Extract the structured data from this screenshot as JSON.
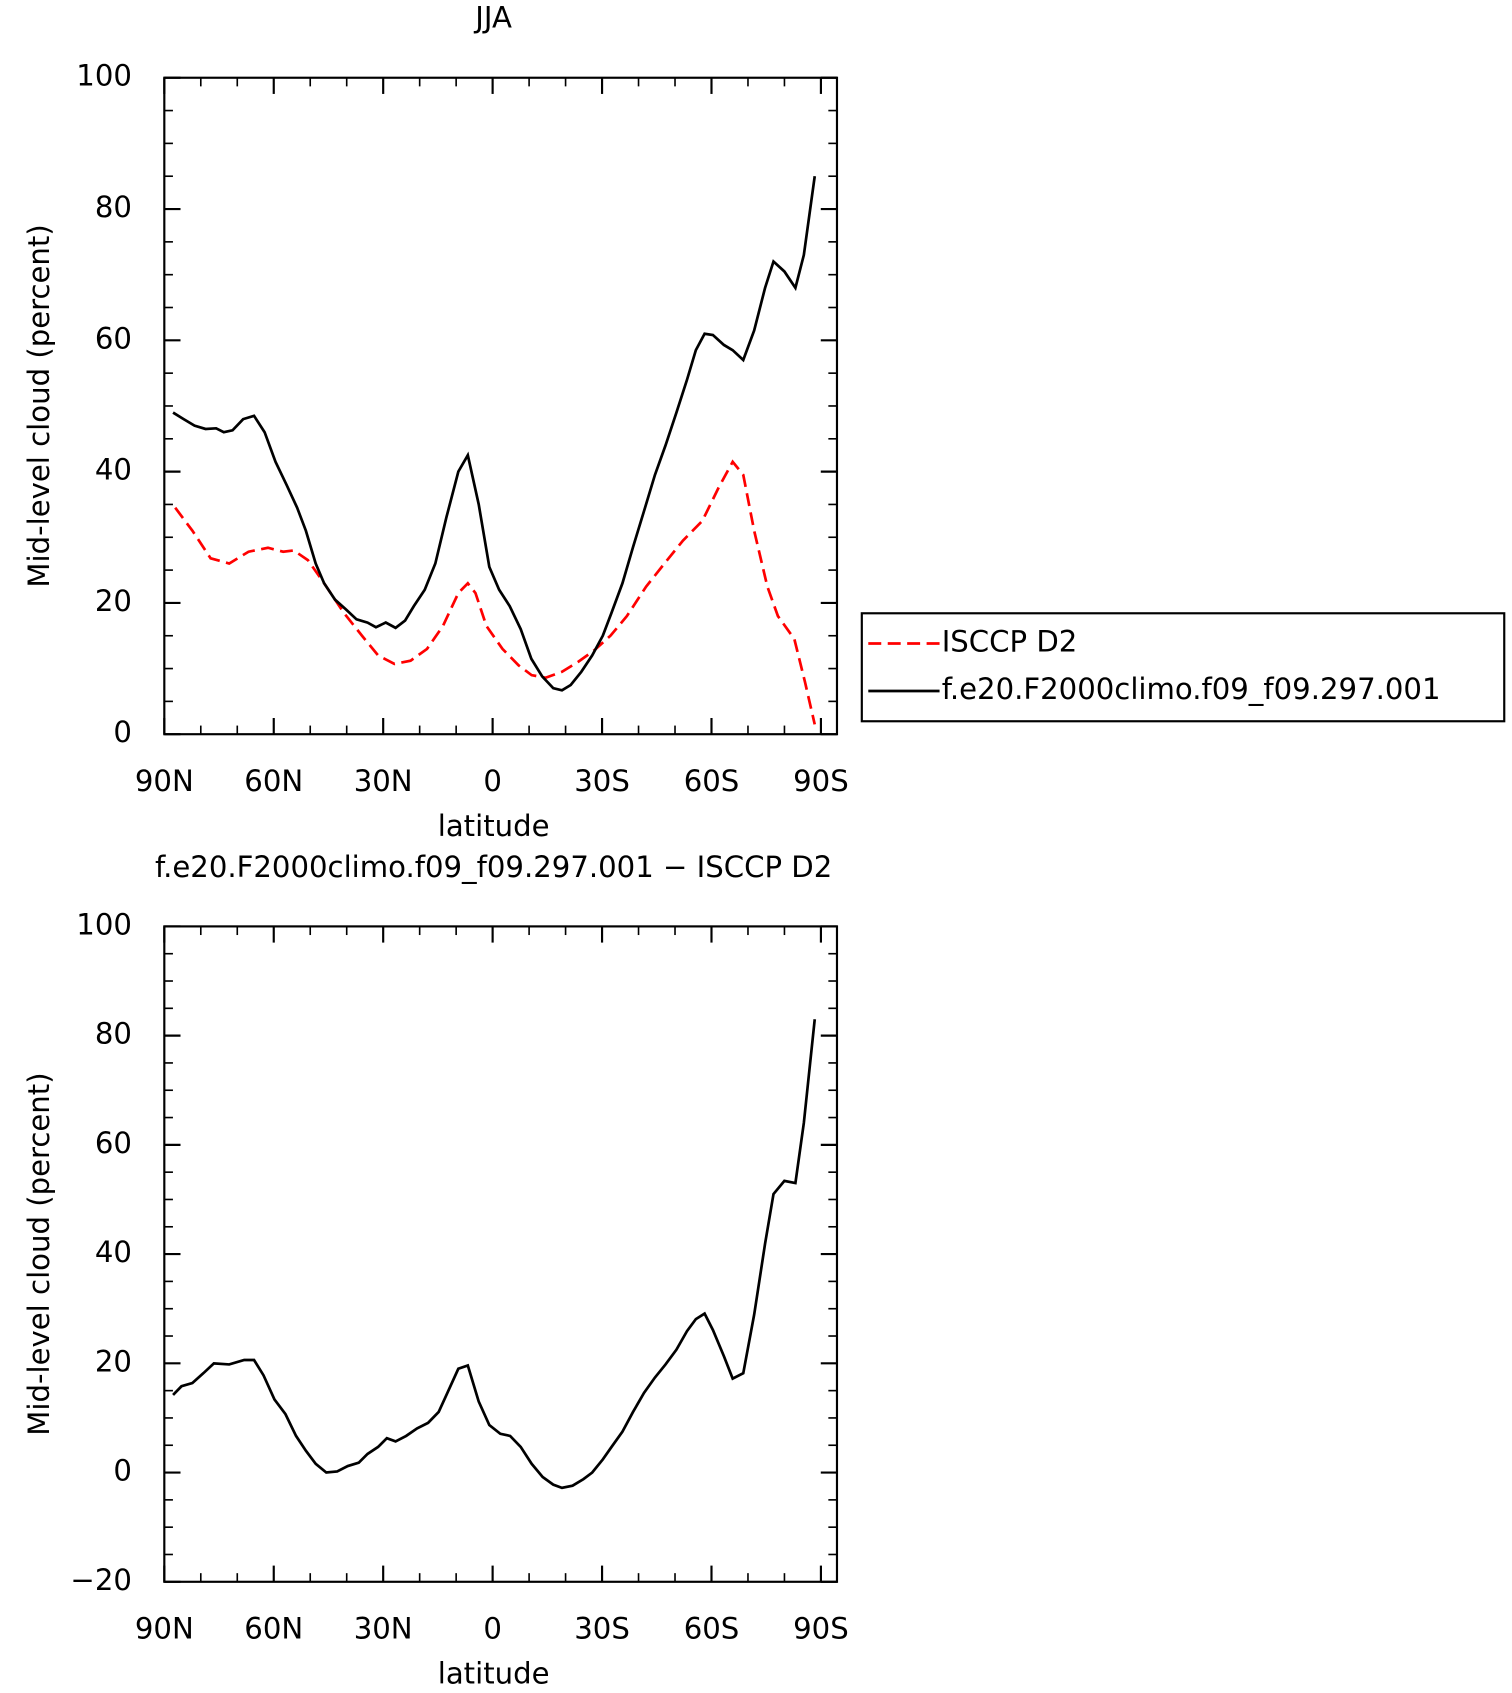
{
  "chart_data": [
    {
      "type": "line",
      "title": "JJA",
      "xlabel": "latitude",
      "ylabel": "Mid-level cloud (percent)",
      "xlim": [
        90,
        -94.4
      ],
      "xticks": [
        {
          "value": 90,
          "label": "90N"
        },
        {
          "value": 60,
          "label": "60N"
        },
        {
          "value": 30,
          "label": "30N"
        },
        0,
        {
          "value": -30,
          "label": "30S"
        },
        {
          "value": -60,
          "label": "60S"
        },
        {
          "value": -90,
          "label": "90S"
        }
      ],
      "ylim": [
        0,
        100
      ],
      "yticks": [
        0,
        20,
        40,
        60,
        80,
        100
      ],
      "series": [
        {
          "name": "ISCCP D2",
          "color": "#ff0000",
          "dash": true,
          "x": [
            87.0,
            82.3,
            77.3,
            72.2,
            66.9,
            61.6,
            57.4,
            54.5,
            50.6,
            46.2,
            40.8,
            35.8,
            31.4,
            26.9,
            22.5,
            18.0,
            13.6,
            9.4,
            6.8,
            4.7,
            1.7,
            -2.7,
            -7.1,
            -10.7,
            -14.5,
            -19.0,
            -23.4,
            -27.9,
            -32.3,
            -36.8,
            -42.1,
            -47.1,
            -52.2,
            -57.5,
            -61.9,
            -65.8,
            -68.7,
            -71.7,
            -75.3,
            -78.2,
            -82.7,
            -85.6,
            -88.3
          ],
          "values": [
            34.5,
            31,
            26.8,
            26,
            27.8,
            28.4,
            27.8,
            28,
            26.5,
            23,
            18.5,
            15,
            12,
            10.7,
            11.2,
            13,
            16.5,
            21.5,
            23,
            21.5,
            16.5,
            13,
            10.5,
            9,
            8.6,
            9.5,
            11,
            12.8,
            15,
            18,
            22.5,
            26,
            29.5,
            32.5,
            37.5,
            41.5,
            39.5,
            31,
            22.5,
            18,
            14.5,
            8,
            1.5
          ]
        },
        {
          "name": "f.e20.F2000climo.f09_f09.297.001",
          "color": "#000000",
          "dash": false,
          "x": [
            87.6,
            84.7,
            81.7,
            78.7,
            75.8,
            73.7,
            71.3,
            68.4,
            65.4,
            62.5,
            59.5,
            56.5,
            53.6,
            51.2,
            48.5,
            46.2,
            43.2,
            40.2,
            37.3,
            34.3,
            32.0,
            29.3,
            26.6,
            24.0,
            21.6,
            18.6,
            15.7,
            12.7,
            9.4,
            6.8,
            3.8,
            0.9,
            -1.8,
            -4.7,
            -7.7,
            -10.6,
            -13.6,
            -16.6,
            -19.0,
            -21.4,
            -24.3,
            -27.3,
            -30.2,
            -32.6,
            -35.6,
            -38.5,
            -41.5,
            -44.5,
            -47.4,
            -50.4,
            -53.3,
            -55.7,
            -58.1,
            -60.4,
            -63.4,
            -65.8,
            -68.7,
            -71.7,
            -74.7,
            -77.0,
            -80.0,
            -83.0,
            -85.3,
            -88.3
          ],
          "values": [
            49,
            48,
            47,
            46.5,
            46.6,
            46,
            46.3,
            48,
            48.5,
            46,
            41.5,
            38,
            34.5,
            31,
            26,
            23,
            20.5,
            19,
            17.5,
            17,
            16.3,
            17,
            16.2,
            17.3,
            19.5,
            22,
            26,
            33,
            40,
            42.5,
            35,
            25.5,
            22,
            19.5,
            16,
            11.5,
            8.8,
            7,
            6.7,
            7.5,
            9.5,
            12,
            15,
            18.5,
            23,
            28.5,
            34,
            39.5,
            44,
            49,
            54,
            58.5,
            61,
            60.8,
            59.3,
            58.5,
            57,
            61.5,
            68,
            72,
            70.5,
            68,
            73,
            85
          ]
        }
      ]
    },
    {
      "type": "line",
      "title": "f.e20.F2000climo.f09_f09.297.001 − ISCCP D2",
      "xlabel": "latitude",
      "ylabel": "Mid-level cloud (percent)",
      "xlim": [
        90,
        -94.4
      ],
      "xticks": [
        {
          "value": 90,
          "label": "90N"
        },
        {
          "value": 60,
          "label": "60N"
        },
        {
          "value": 30,
          "label": "30N"
        },
        0,
        {
          "value": -30,
          "label": "30S"
        },
        {
          "value": -60,
          "label": "60S"
        },
        {
          "value": -90,
          "label": "90S"
        }
      ],
      "ylim": [
        -20,
        100
      ],
      "yticks": [
        {
          "value": -20,
          "label": "−20"
        },
        0,
        20,
        40,
        60,
        80,
        100
      ],
      "series": [
        {
          "color": "#000000",
          "dash": false,
          "x": [
            87.6,
            85.3,
            82.3,
            79.3,
            76.4,
            72.2,
            68.1,
            65.4,
            62.8,
            59.8,
            56.8,
            53.9,
            51.2,
            48.5,
            45.6,
            42.6,
            39.7,
            36.7,
            34.3,
            31.4,
            29.0,
            26.6,
            23.7,
            20.7,
            17.7,
            14.8,
            12.4,
            9.4,
            6.8,
            3.8,
            0.9,
            -2.1,
            -4.8,
            -7.7,
            -10.7,
            -13.7,
            -16.6,
            -19.0,
            -21.9,
            -24.9,
            -27.3,
            -30.2,
            -32.6,
            -35.6,
            -38.5,
            -41.5,
            -44.5,
            -47.4,
            -50.4,
            -53.3,
            -55.7,
            -58.1,
            -60.4,
            -63.4,
            -65.8,
            -68.7,
            -71.7,
            -74.7,
            -77.0,
            -80.0,
            -83.0,
            -85.3,
            -88.3
          ],
          "values": [
            14.2,
            15.8,
            16.4,
            18.2,
            20,
            19.8,
            20.6,
            20.6,
            17.8,
            13.4,
            10.7,
            6.7,
            4,
            1.6,
            0,
            0.2,
            1.2,
            1.8,
            3.4,
            4.7,
            6.3,
            5.7,
            6.7,
            8.1,
            9.1,
            11.1,
            14.6,
            19,
            19.6,
            13,
            8.7,
            7.1,
            6.7,
            4.7,
            1.6,
            -0.8,
            -2.2,
            -2.8,
            -2.4,
            -1.2,
            0,
            2.4,
            4.7,
            7.5,
            11.1,
            14.6,
            17.4,
            19.8,
            22.5,
            25.9,
            28.1,
            29.1,
            26.1,
            21.3,
            17.2,
            18.2,
            28.9,
            41.9,
            51,
            53.4,
            53,
            64,
            83
          ]
        }
      ]
    }
  ]
}
